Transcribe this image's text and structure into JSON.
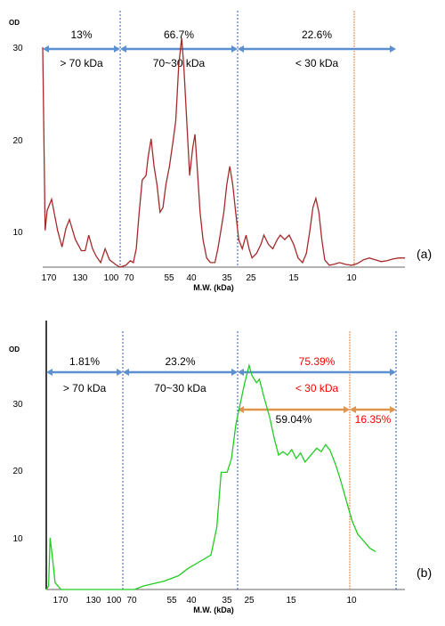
{
  "chart_data": [
    {
      "panel": "(a)",
      "type": "line",
      "ylabel": "OD",
      "xlabel": "M.W. (kDa)",
      "yticks": [
        "30",
        "20",
        "10"
      ],
      "xticks": [
        "170",
        "130",
        "100",
        "70",
        "55",
        "40",
        "35",
        "25",
        "15",
        "10"
      ],
      "regions": [
        {
          "percent": "13%",
          "label": "> 70 kDa",
          "color": "#000000"
        },
        {
          "percent": "66.7%",
          "label": "70~30 kDa",
          "color": "#000000"
        },
        {
          "percent": "22.6%",
          "label": "< 30 kDa",
          "color": "#000000"
        }
      ],
      "sub_regions": [],
      "series": [
        {
          "color": "#a52a2a",
          "points": [
            [
              0,
              30
            ],
            [
              0.008,
              10
            ],
            [
              0.015,
              12.2
            ],
            [
              0.03,
              13.4
            ],
            [
              0.05,
              10
            ],
            [
              0.065,
              8.2
            ],
            [
              0.078,
              10.2
            ],
            [
              0.09,
              11.2
            ],
            [
              0.11,
              9
            ],
            [
              0.13,
              7.8
            ],
            [
              0.143,
              7.8
            ],
            [
              0.155,
              9.5
            ],
            [
              0.168,
              8
            ],
            [
              0.18,
              7.2
            ],
            [
              0.195,
              6.5
            ],
            [
              0.21,
              8
            ],
            [
              0.225,
              6.8
            ],
            [
              0.245,
              6.3
            ],
            [
              0.26,
              6
            ],
            [
              0.28,
              6.2
            ],
            [
              0.295,
              6.7
            ],
            [
              0.305,
              6.5
            ],
            [
              0.315,
              8
            ],
            [
              0.325,
              12
            ],
            [
              0.335,
              15.5
            ],
            [
              0.348,
              16
            ],
            [
              0.355,
              18
            ],
            [
              0.365,
              20
            ],
            [
              0.375,
              17
            ],
            [
              0.385,
              15
            ],
            [
              0.395,
              12
            ],
            [
              0.405,
              12.5
            ],
            [
              0.415,
              15
            ],
            [
              0.427,
              17
            ],
            [
              0.44,
              20
            ],
            [
              0.448,
              22
            ],
            [
              0.458,
              28
            ],
            [
              0.468,
              31
            ],
            [
              0.475,
              28
            ],
            [
              0.485,
              22
            ],
            [
              0.495,
              16
            ],
            [
              0.505,
              19
            ],
            [
              0.513,
              20.5
            ],
            [
              0.52,
              17
            ],
            [
              0.53,
              12
            ],
            [
              0.54,
              9
            ],
            [
              0.552,
              7
            ],
            [
              0.565,
              6.5
            ],
            [
              0.58,
              6.5
            ],
            [
              0.59,
              8
            ],
            [
              0.6,
              10
            ],
            [
              0.61,
              12
            ],
            [
              0.62,
              15
            ],
            [
              0.63,
              17
            ],
            [
              0.64,
              15
            ],
            [
              0.65,
              12
            ],
            [
              0.66,
              9
            ],
            [
              0.672,
              8
            ],
            [
              0.685,
              9.5
            ],
            [
              0.695,
              8
            ],
            [
              0.705,
              7
            ],
            [
              0.72,
              7.5
            ],
            [
              0.735,
              8.5
            ],
            [
              0.745,
              9.5
            ],
            [
              0.76,
              8.5
            ],
            [
              0.775,
              8
            ],
            [
              0.79,
              9
            ],
            [
              0.8,
              9.5
            ],
            [
              0.815,
              9
            ],
            [
              0.83,
              9.5
            ],
            [
              0.845,
              8.5
            ],
            [
              0.86,
              7
            ],
            [
              0.875,
              6.5
            ],
            [
              0.888,
              7.5
            ],
            [
              0.9,
              10
            ],
            [
              0.91,
              12.5
            ],
            [
              0.92,
              13.5
            ],
            [
              0.93,
              12
            ],
            [
              0.94,
              9
            ],
            [
              0.95,
              6.8
            ],
            [
              0.965,
              6.2
            ],
            [
              0.98,
              6.3
            ],
            [
              1.0,
              6.5
            ],
            [
              1.02,
              6.3
            ],
            [
              1.04,
              6.2
            ],
            [
              1.06,
              6.4
            ],
            [
              1.08,
              6.8
            ],
            [
              1.1,
              7
            ],
            [
              1.12,
              6.8
            ],
            [
              1.14,
              6.6
            ],
            [
              1.16,
              6.7
            ],
            [
              1.18,
              6.9
            ],
            [
              1.2,
              7
            ],
            [
              1.22,
              7
            ]
          ]
        }
      ]
    },
    {
      "panel": "(b)",
      "type": "line",
      "ylabel": "OD",
      "xlabel": "M.W. (kDa)",
      "yticks": [
        "30",
        "20",
        "10"
      ],
      "xticks": [
        "170",
        "130",
        "100",
        "70",
        "55",
        "40",
        "35",
        "25",
        "15",
        "10"
      ],
      "regions": [
        {
          "percent": "1.81%",
          "label": "> 70 kDa",
          "color": "#000000"
        },
        {
          "percent": "23.2%",
          "label": "70~30 kDa",
          "color": "#000000"
        },
        {
          "percent": "75.39%",
          "label": "< 30 kDa",
          "color": "#ff0000"
        }
      ],
      "sub_regions": [
        {
          "percent": "59.04%",
          "color": "#000000"
        },
        {
          "percent": "16.35%",
          "color": "#ff0000"
        }
      ],
      "series": [
        {
          "color": "#22cc22",
          "points": [
            [
              0,
              3
            ],
            [
              0.008,
              3.5
            ],
            [
              0.013,
              10.5
            ],
            [
              0.02,
              8
            ],
            [
              0.03,
              4
            ],
            [
              0.05,
              3
            ],
            [
              0.1,
              3
            ],
            [
              0.2,
              3
            ],
            [
              0.3,
              3
            ],
            [
              0.33,
              3.5
            ],
            [
              0.36,
              3.8
            ],
            [
              0.4,
              4.2
            ],
            [
              0.45,
              5
            ],
            [
              0.48,
              6
            ],
            [
              0.52,
              7
            ],
            [
              0.56,
              8
            ],
            [
              0.58,
              12
            ],
            [
              0.595,
              20
            ],
            [
              0.615,
              20
            ],
            [
              0.63,
              22
            ],
            [
              0.645,
              27
            ],
            [
              0.66,
              30
            ],
            [
              0.675,
              33
            ],
            [
              0.69,
              35.5
            ],
            [
              0.7,
              34
            ],
            [
              0.715,
              33
            ],
            [
              0.725,
              33.5
            ],
            [
              0.74,
              31
            ],
            [
              0.76,
              28
            ],
            [
              0.775,
              25
            ],
            [
              0.79,
              22.5
            ],
            [
              0.805,
              23
            ],
            [
              0.82,
              22.5
            ],
            [
              0.835,
              23.3
            ],
            [
              0.85,
              22
            ],
            [
              0.865,
              22.8
            ],
            [
              0.88,
              21.5
            ],
            [
              0.9,
              22.5
            ],
            [
              0.92,
              23.5
            ],
            [
              0.935,
              23
            ],
            [
              0.95,
              24
            ],
            [
              0.965,
              23.2
            ],
            [
              0.985,
              21
            ],
            [
              1.0,
              19
            ],
            [
              1.02,
              16
            ],
            [
              1.04,
              13
            ],
            [
              1.06,
              11
            ],
            [
              1.08,
              10
            ],
            [
              1.1,
              9
            ],
            [
              1.12,
              8.5
            ]
          ]
        }
      ]
    }
  ],
  "panel_labels": {
    "a": "(a)",
    "b": "(b)"
  }
}
